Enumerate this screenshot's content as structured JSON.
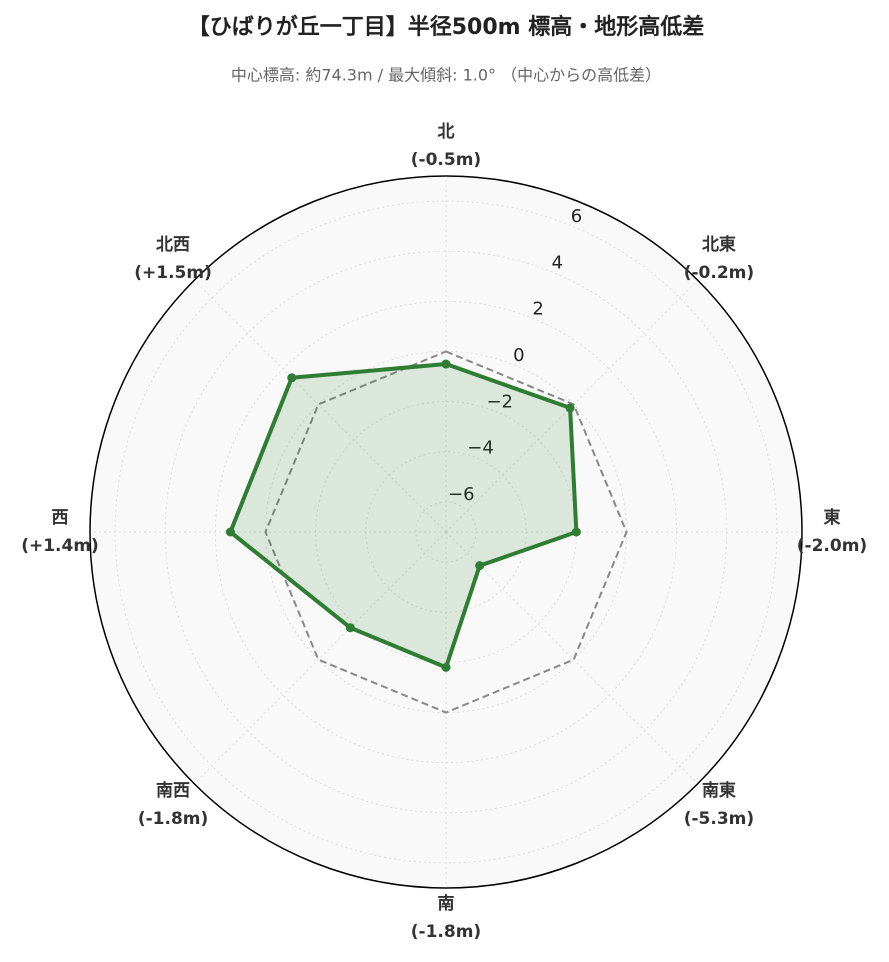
{
  "chart_data": {
    "type": "radar",
    "title": "【ひばりが丘一丁目】半径500m 標高・地形高低差",
    "subtitle": "中心標高: 約74.3m / 最大傾斜: 1.0°  （中心からの高低差）",
    "categories": [
      "北",
      "北東",
      "東",
      "南東",
      "南",
      "南西",
      "西",
      "北西"
    ],
    "values": [
      -0.5,
      -0.2,
      -2.0,
      -5.3,
      -1.8,
      -1.8,
      1.4,
      1.5
    ],
    "value_labels": [
      "(-0.5m)",
      "(-0.2m)",
      "(-2.0m)",
      "(-5.3m)",
      "(-1.8m)",
      "(-1.8m)",
      "(+1.4m)",
      "(+1.5m)"
    ],
    "color": "#2e7d32",
    "zero_line": {
      "value": 0,
      "color": "#888888"
    },
    "ylim": [
      -7.2,
      7.0
    ],
    "yticks": [
      {
        "value": -6,
        "label": "−6"
      },
      {
        "value": -4,
        "label": "−4"
      },
      {
        "value": -2,
        "label": "−2"
      },
      0,
      2,
      4,
      6
    ],
    "grid": true
  }
}
